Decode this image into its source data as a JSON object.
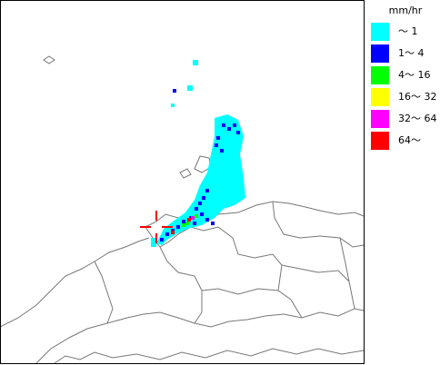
{
  "legend": {
    "unit": "mm/hr",
    "entries": [
      {
        "label": "～ 1",
        "color": "#00ffff"
      },
      {
        "label": "1～ 4",
        "color": "#0000ff"
      },
      {
        "label": "4～ 16",
        "color": "#00ff00"
      },
      {
        "label": "16～ 32",
        "color": "#ffff00"
      },
      {
        "label": "32～ 64",
        "color": "#ff00ff"
      },
      {
        "label": "64～",
        "color": "#ff0000"
      }
    ]
  }
}
